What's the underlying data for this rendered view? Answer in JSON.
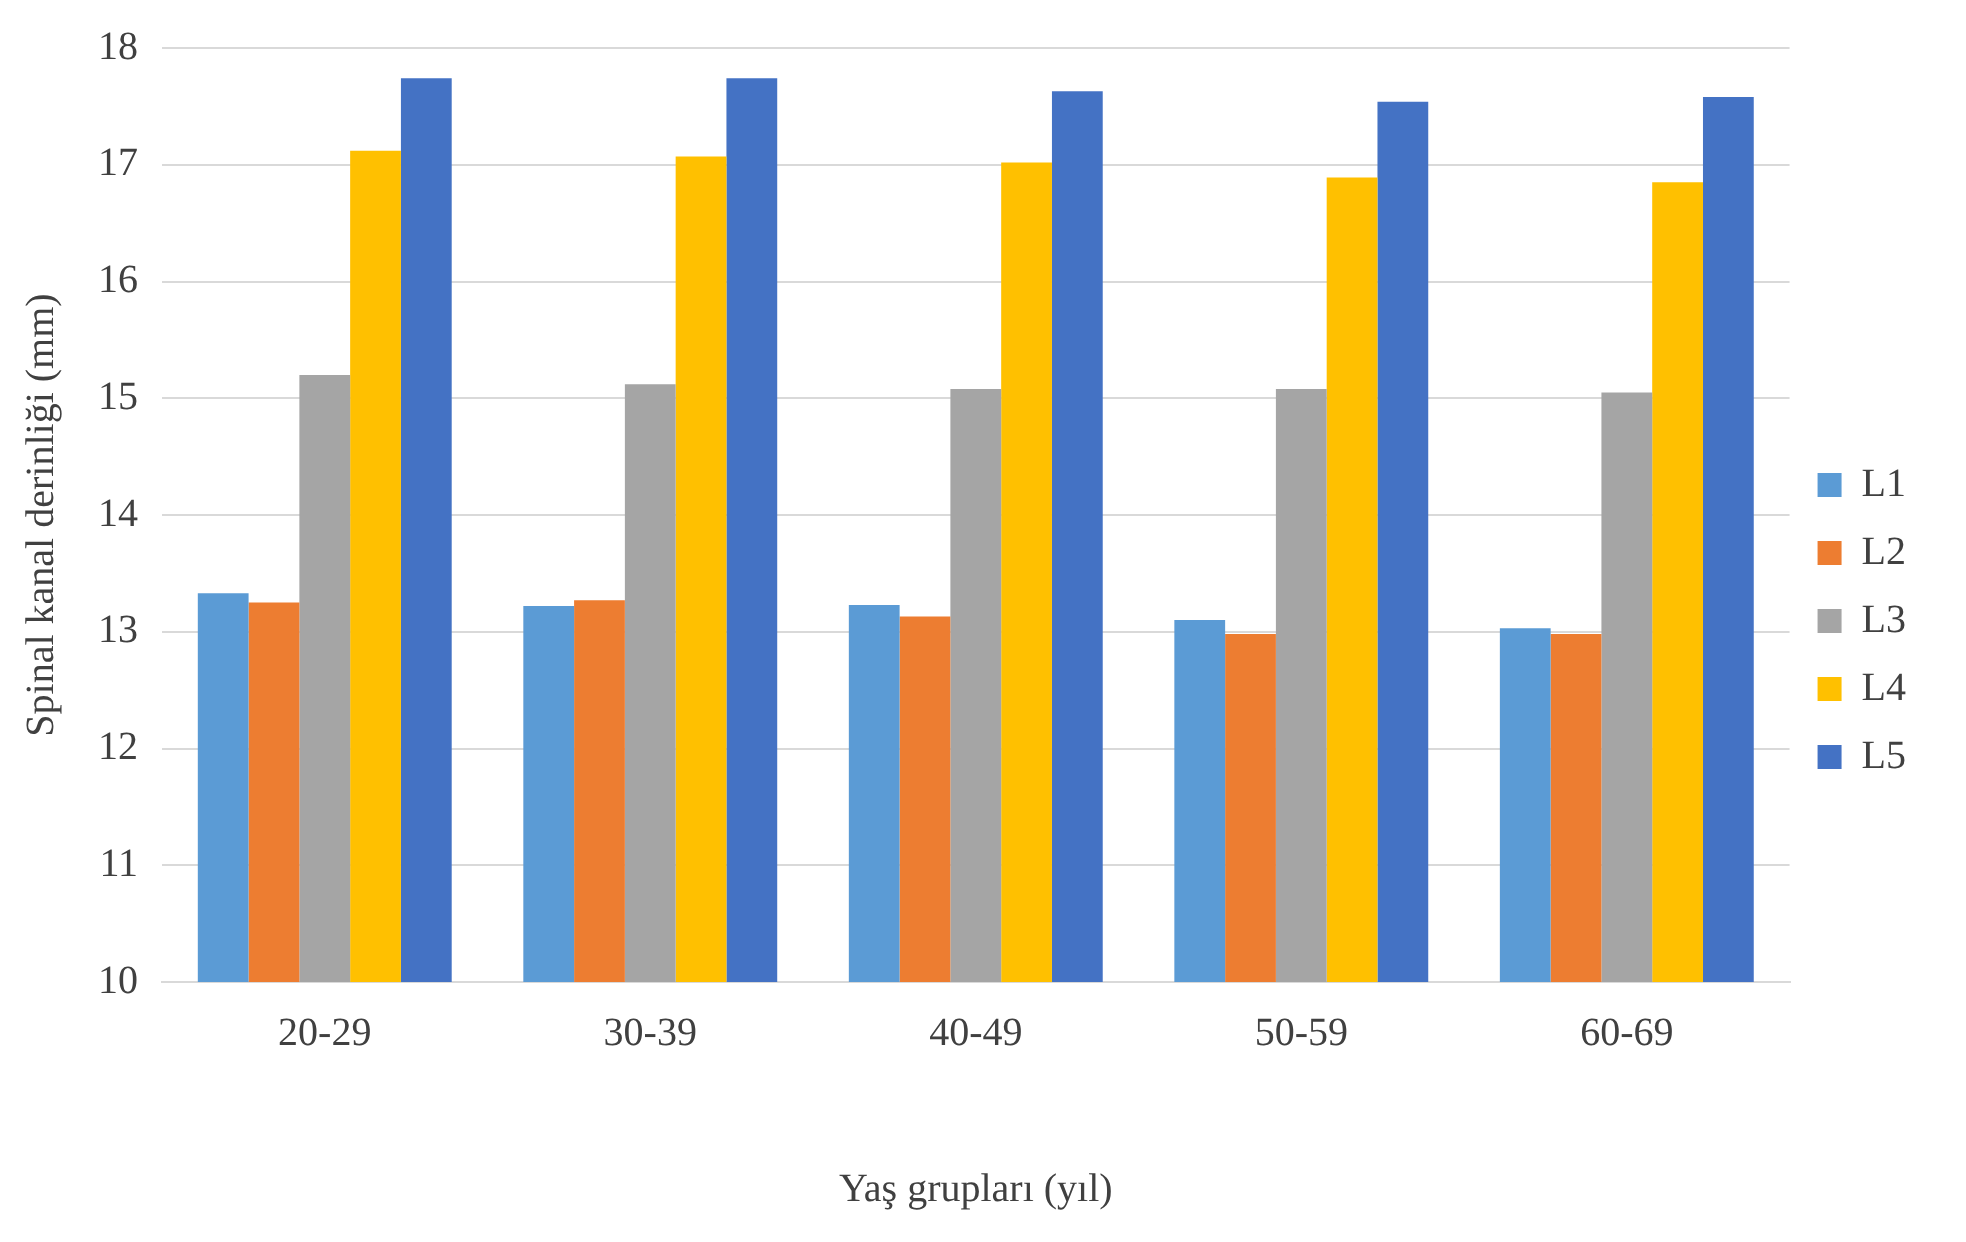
{
  "chart_data": {
    "type": "bar",
    "xlabel": "Yaş grupları (yıl)",
    "ylabel": "Spinal kanal derinliği (mm)",
    "categories": [
      "20-29",
      "30-39",
      "40-49",
      "50-59",
      "60-69"
    ],
    "series": [
      {
        "name": "L1",
        "color": "#5b9bd5",
        "values": [
          13.33,
          13.22,
          13.23,
          13.1,
          13.03
        ]
      },
      {
        "name": "L2",
        "color": "#ed7d31",
        "values": [
          13.25,
          13.27,
          13.13,
          12.98,
          12.98
        ]
      },
      {
        "name": "L3",
        "color": "#a5a5a5",
        "values": [
          15.2,
          15.12,
          15.08,
          15.08,
          15.05
        ]
      },
      {
        "name": "L4",
        "color": "#ffc000",
        "values": [
          17.12,
          17.07,
          17.02,
          16.89,
          16.85
        ]
      },
      {
        "name": "L5",
        "color": "#4472c4",
        "values": [
          17.74,
          17.74,
          17.63,
          17.54,
          17.58
        ]
      }
    ],
    "ylim": [
      10,
      18
    ],
    "yticks": [
      10,
      11,
      12,
      13,
      14,
      15,
      16,
      17,
      18
    ],
    "grid": "y",
    "legend": "right"
  }
}
